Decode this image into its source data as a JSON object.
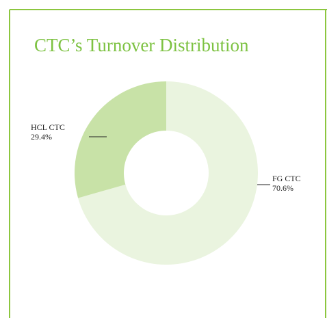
{
  "chart_data": {
    "type": "pie",
    "title": "CTC’s Turnover Distribution",
    "categories": [
      "FG CTC",
      "HCL CTC"
    ],
    "values": [
      70.6,
      29.4
    ],
    "value_labels": [
      "70.6%",
      "29.4%"
    ],
    "colors": [
      "#eaf4df",
      "#c8e2a7"
    ],
    "donut": true
  }
}
